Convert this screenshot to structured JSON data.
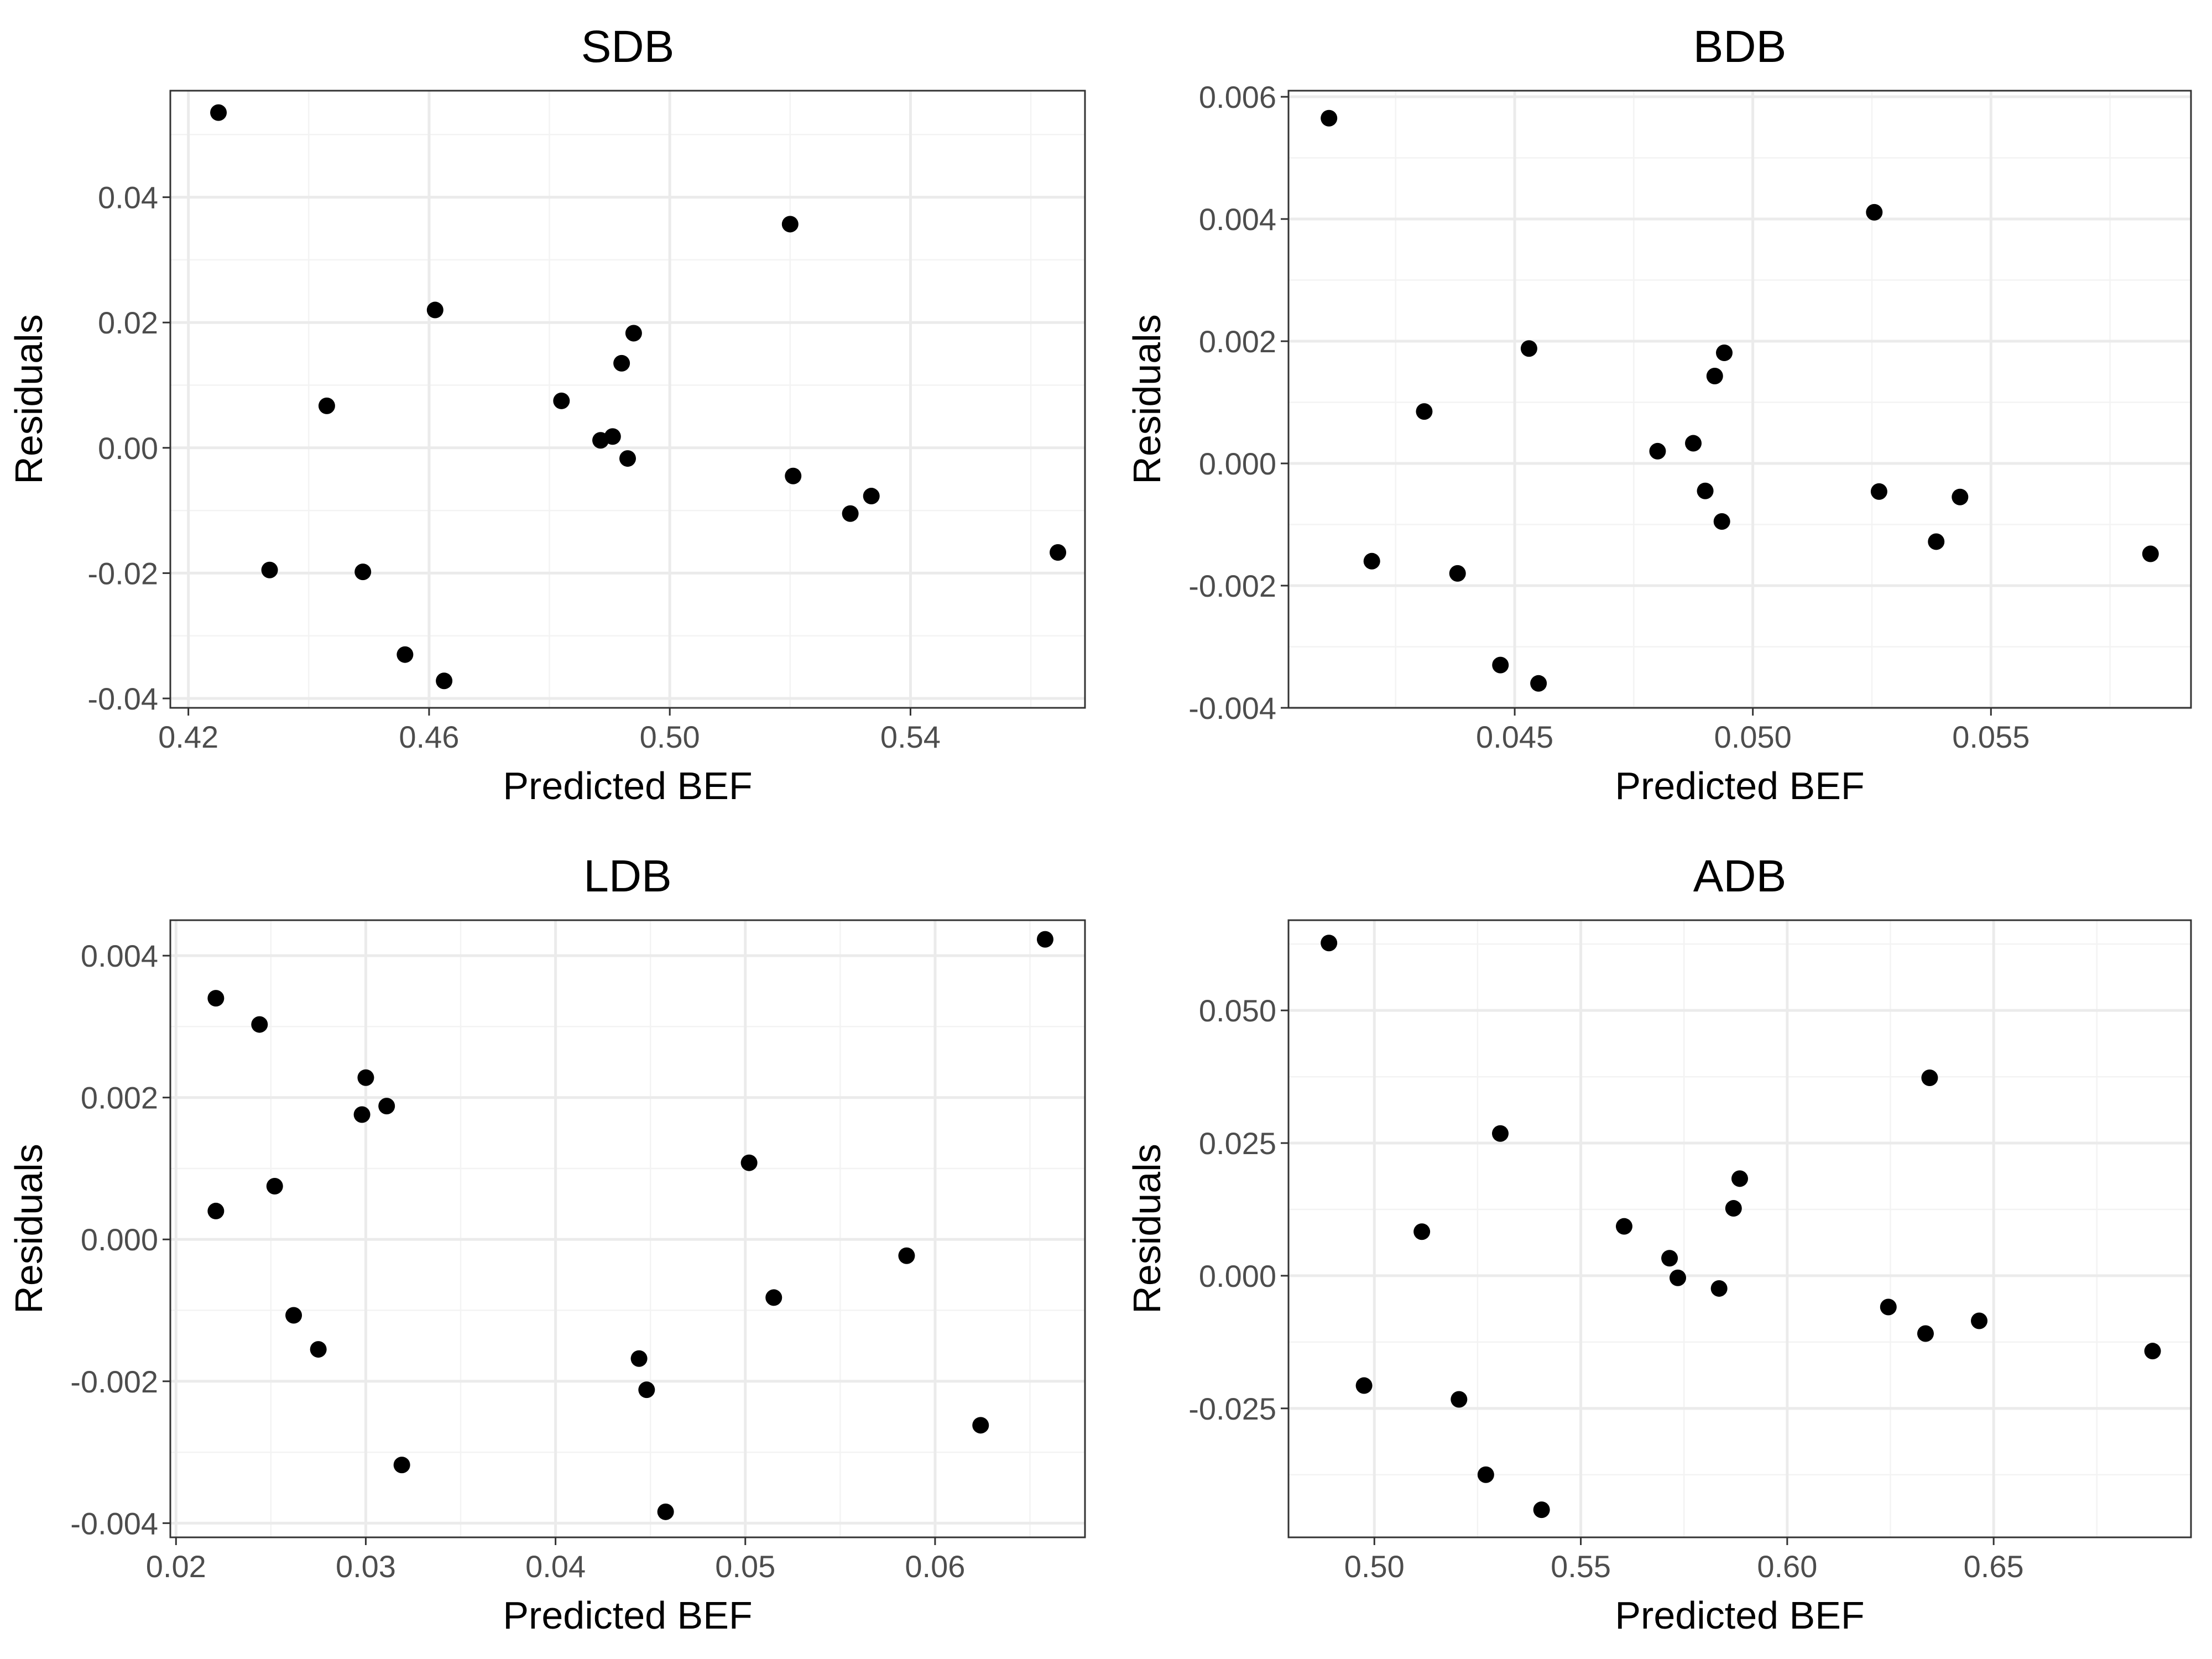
{
  "chart_data": [
    {
      "type": "scatter",
      "title": "SDB",
      "xlabel": "Predicted BEF",
      "ylabel": "Residuals",
      "xlim": [
        0.417,
        0.569
      ],
      "ylim": [
        -0.0415,
        0.057
      ],
      "xticks": [
        0.42,
        0.46,
        0.5,
        0.54
      ],
      "xtick_labels": [
        "0.42",
        "0.46",
        "0.50",
        "0.54"
      ],
      "yticks": [
        -0.04,
        -0.02,
        0.0,
        0.02,
        0.04
      ],
      "ytick_labels": [
        "-0.04",
        "-0.02",
        "0.00",
        "0.02",
        "0.04"
      ],
      "grid": true,
      "points": [
        {
          "x": 0.425,
          "y": 0.0535
        },
        {
          "x": 0.4335,
          "y": -0.0195
        },
        {
          "x": 0.443,
          "y": 0.0067
        },
        {
          "x": 0.449,
          "y": -0.0198
        },
        {
          "x": 0.456,
          "y": -0.033
        },
        {
          "x": 0.461,
          "y": 0.022
        },
        {
          "x": 0.4625,
          "y": -0.0372
        },
        {
          "x": 0.482,
          "y": 0.0075
        },
        {
          "x": 0.4885,
          "y": 0.0012
        },
        {
          "x": 0.4905,
          "y": 0.0018
        },
        {
          "x": 0.492,
          "y": 0.0135
        },
        {
          "x": 0.493,
          "y": -0.0017
        },
        {
          "x": 0.494,
          "y": 0.0183
        },
        {
          "x": 0.52,
          "y": 0.0357
        },
        {
          "x": 0.5205,
          "y": -0.0045
        },
        {
          "x": 0.53,
          "y": -0.0105
        },
        {
          "x": 0.5335,
          "y": -0.0077
        },
        {
          "x": 0.5645,
          "y": -0.0167
        }
      ]
    },
    {
      "type": "scatter",
      "title": "BDB",
      "xlabel": "Predicted BEF",
      "ylabel": "Residuals",
      "xlim": [
        0.04025,
        0.0592
      ],
      "ylim": [
        -0.004,
        0.0061
      ],
      "xticks": [
        0.045,
        0.05,
        0.055
      ],
      "xtick_labels": [
        "0.045",
        "0.050",
        "0.055"
      ],
      "yticks": [
        -0.004,
        -0.002,
        0.0,
        0.002,
        0.004,
        0.006
      ],
      "ytick_labels": [
        "-0.004",
        "-0.002",
        "0.000",
        "0.002",
        "0.004",
        "0.006"
      ],
      "grid": true,
      "points": [
        {
          "x": 0.0411,
          "y": 0.00565
        },
        {
          "x": 0.042,
          "y": -0.0016
        },
        {
          "x": 0.0431,
          "y": 0.00085
        },
        {
          "x": 0.0438,
          "y": -0.0018
        },
        {
          "x": 0.0447,
          "y": -0.0033
        },
        {
          "x": 0.0453,
          "y": 0.00188
        },
        {
          "x": 0.0455,
          "y": -0.0036
        },
        {
          "x": 0.048,
          "y": 0.0002
        },
        {
          "x": 0.04875,
          "y": 0.00033
        },
        {
          "x": 0.049,
          "y": -0.00045
        },
        {
          "x": 0.0492,
          "y": 0.00143
        },
        {
          "x": 0.04935,
          "y": -0.00095
        },
        {
          "x": 0.0494,
          "y": 0.00181
        },
        {
          "x": 0.05255,
          "y": 0.00411
        },
        {
          "x": 0.05265,
          "y": -0.00046
        },
        {
          "x": 0.05385,
          "y": -0.00128
        },
        {
          "x": 0.05435,
          "y": -0.00055
        },
        {
          "x": 0.05835,
          "y": -0.00148
        }
      ]
    },
    {
      "type": "scatter",
      "title": "LDB",
      "xlabel": "Predicted BEF",
      "ylabel": "Residuals",
      "xlim": [
        0.0197,
        0.0679
      ],
      "ylim": [
        -0.0042,
        0.0045
      ],
      "xticks": [
        0.02,
        0.03,
        0.04,
        0.05,
        0.06
      ],
      "xtick_labels": [
        "0.02",
        "0.03",
        "0.04",
        "0.05",
        "0.06"
      ],
      "yticks": [
        -0.004,
        -0.002,
        0.0,
        0.002,
        0.004
      ],
      "ytick_labels": [
        "-0.004",
        "-0.002",
        "0.000",
        "0.002",
        "0.004"
      ],
      "grid": true,
      "points": [
        {
          "x": 0.0221,
          "y": 0.0034
        },
        {
          "x": 0.0221,
          "y": 0.0004
        },
        {
          "x": 0.0244,
          "y": 0.00303
        },
        {
          "x": 0.0252,
          "y": 0.00075
        },
        {
          "x": 0.0262,
          "y": -0.00107
        },
        {
          "x": 0.0275,
          "y": -0.00155
        },
        {
          "x": 0.0298,
          "y": 0.00176
        },
        {
          "x": 0.03,
          "y": 0.00228
        },
        {
          "x": 0.0311,
          "y": 0.00188
        },
        {
          "x": 0.0319,
          "y": -0.00318
        },
        {
          "x": 0.0444,
          "y": -0.00168
        },
        {
          "x": 0.0448,
          "y": -0.00212
        },
        {
          "x": 0.0458,
          "y": -0.00384
        },
        {
          "x": 0.0502,
          "y": 0.00108
        },
        {
          "x": 0.0515,
          "y": -0.00082
        },
        {
          "x": 0.0585,
          "y": -0.00023
        },
        {
          "x": 0.0624,
          "y": -0.00262
        },
        {
          "x": 0.0658,
          "y": 0.00423
        }
      ]
    },
    {
      "type": "scatter",
      "title": "ADB",
      "xlabel": "Predicted BEF",
      "ylabel": "Residuals",
      "xlim": [
        0.4792,
        0.6978
      ],
      "ylim": [
        -0.0493,
        0.067
      ],
      "xticks": [
        0.5,
        0.55,
        0.6,
        0.65
      ],
      "xtick_labels": [
        "0.50",
        "0.55",
        "0.60",
        "0.65"
      ],
      "yticks": [
        -0.025,
        0.0,
        0.025,
        0.05
      ],
      "ytick_labels": [
        "-0.025",
        "0.000",
        "0.025",
        "0.050"
      ],
      "grid": true,
      "points": [
        {
          "x": 0.489,
          "y": 0.0627
        },
        {
          "x": 0.4975,
          "y": -0.0207
        },
        {
          "x": 0.5115,
          "y": 0.0083
        },
        {
          "x": 0.5205,
          "y": -0.0233
        },
        {
          "x": 0.527,
          "y": -0.0375
        },
        {
          "x": 0.5305,
          "y": 0.0268
        },
        {
          "x": 0.5405,
          "y": -0.0441
        },
        {
          "x": 0.5605,
          "y": 0.0093
        },
        {
          "x": 0.5715,
          "y": 0.0033
        },
        {
          "x": 0.5735,
          "y": -0.0004
        },
        {
          "x": 0.5835,
          "y": -0.0024
        },
        {
          "x": 0.587,
          "y": 0.0127
        },
        {
          "x": 0.5885,
          "y": 0.0183
        },
        {
          "x": 0.6245,
          "y": -0.0059
        },
        {
          "x": 0.6335,
          "y": -0.0109
        },
        {
          "x": 0.6345,
          "y": 0.0373
        },
        {
          "x": 0.6465,
          "y": -0.0085
        },
        {
          "x": 0.6885,
          "y": -0.0142
        }
      ]
    }
  ]
}
